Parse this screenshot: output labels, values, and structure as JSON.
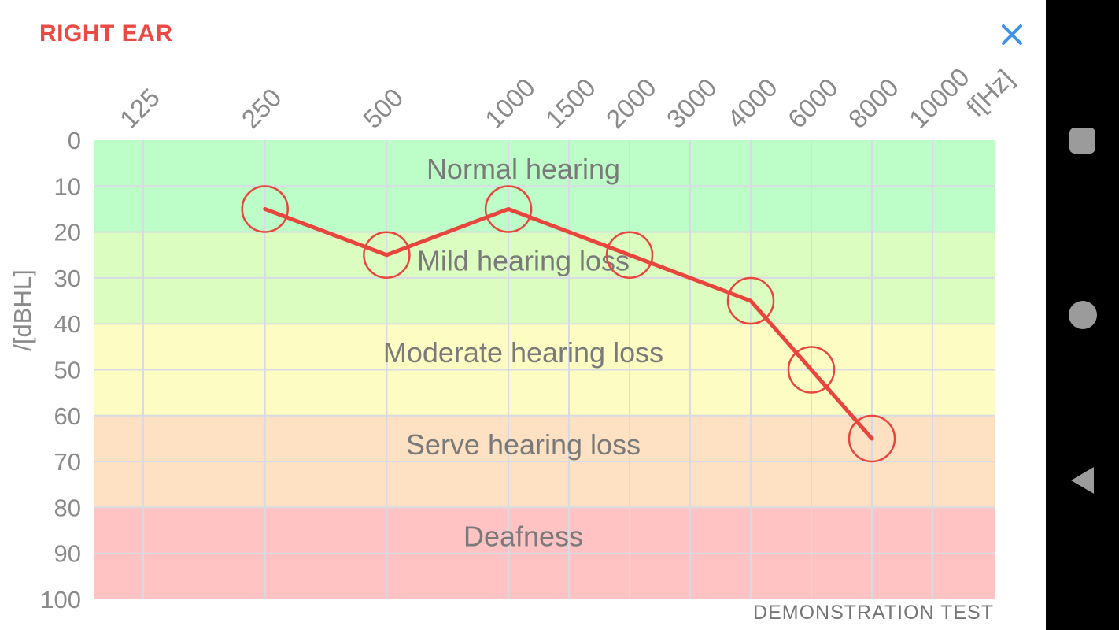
{
  "header": {
    "title": "RIGHT EAR",
    "close_icon": "close-icon"
  },
  "chart_data": {
    "type": "line",
    "x_axis": {
      "label": "f[Hz]",
      "ticks": [
        "125",
        "250",
        "500",
        "1000",
        "1500",
        "2000",
        "3000",
        "4000",
        "6000",
        "8000",
        "10000"
      ]
    },
    "y_axis": {
      "label": "/[dBHL]",
      "ticks": [
        "0",
        "10",
        "20",
        "30",
        "40",
        "50",
        "60",
        "70",
        "80",
        "90",
        "100"
      ],
      "min": 0,
      "max": 100,
      "inverted": true
    },
    "bands": [
      {
        "label": "Normal hearing",
        "from_db": 0,
        "to_db": 20,
        "color": "#bdfdc7"
      },
      {
        "label": "Mild hearing loss",
        "from_db": 20,
        "to_db": 40,
        "color": "#dcfdc0"
      },
      {
        "label": "Moderate hearing loss",
        "from_db": 40,
        "to_db": 60,
        "color": "#fdfcc3"
      },
      {
        "label": "Serve hearing loss",
        "from_db": 60,
        "to_db": 80,
        "color": "#fee1c2"
      },
      {
        "label": "Deafness",
        "from_db": 80,
        "to_db": 100,
        "color": "#ffc3c3"
      }
    ],
    "series": [
      {
        "name": "Right ear thresholds",
        "color": "#e8463d",
        "marker": "open-circle",
        "points": [
          {
            "f": 250,
            "db": 15
          },
          {
            "f": 500,
            "db": 25
          },
          {
            "f": 1000,
            "db": 15
          },
          {
            "f": 2000,
            "db": 25
          },
          {
            "f": 4000,
            "db": 35
          },
          {
            "f": 6000,
            "db": 50
          },
          {
            "f": 8000,
            "db": 65
          }
        ]
      }
    ],
    "grid": true,
    "legend": "none",
    "watermark": "DEMONSTRATION TEST"
  },
  "navbar": {
    "buttons": [
      {
        "name": "recents",
        "icon": "square-icon"
      },
      {
        "name": "home",
        "icon": "circle-icon"
      },
      {
        "name": "back",
        "icon": "triangle-left-icon"
      }
    ]
  },
  "colors": {
    "title_red": "#ea4a43",
    "close_blue": "#4191e6",
    "series_red": "#e8463d",
    "grid_line": "#d9dbe4",
    "axis_text": "#8a8a8a",
    "band_text": "#7a7a7a",
    "watermark_text": "#757575",
    "nav_bg": "#000000",
    "nav_icon": "#9b9b9b"
  }
}
